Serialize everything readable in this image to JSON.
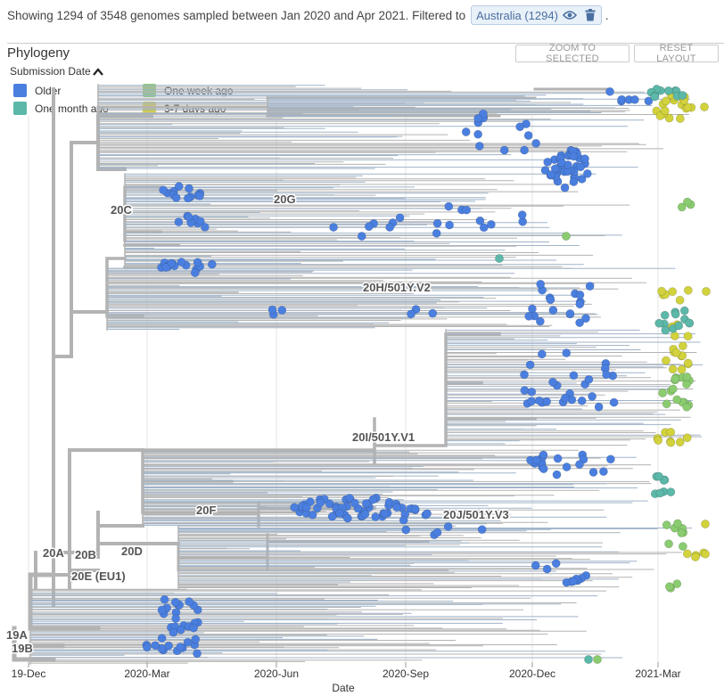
{
  "info": {
    "summary": "Showing 1294 of 3548 genomes sampled between Jan 2020 and Apr 2021. Filtered to",
    "filter_label": "Australia (1294)",
    "suffix": "."
  },
  "panel": {
    "title": "Phylogeny",
    "zoom_button": "ZOOM TO SELECTED",
    "reset_button": "RESET LAYOUT"
  },
  "legend": {
    "title": "Submission Date",
    "items": [
      {
        "label": "Older",
        "color": "#4A7FE0"
      },
      {
        "label": "One month ago",
        "color": "#5CB8A8"
      },
      {
        "label": "One week ago",
        "color": "#8ACC6F"
      },
      {
        "label": "3-7 days ago",
        "color": "#D2D23C"
      }
    ]
  },
  "axis": {
    "label": "Date",
    "ticks": [
      "19-Dec",
      "2020-Mar",
      "2020-Jun",
      "2020-Sep",
      "2020-Dec",
      "2021-Mar"
    ]
  },
  "clades": [
    "20C",
    "20G",
    "20H/501Y.V2",
    "20I/501Y.V1",
    "20F",
    "20J/501Y.V3",
    "20A",
    "20B",
    "20D",
    "20E (EU1)",
    "19A",
    "19B"
  ],
  "colors": {
    "branch": "#b3b3b3",
    "branch_light": "#9fb3c8",
    "older": "#4A7FE0",
    "month": "#5CB8A8",
    "week": "#8ACC6F",
    "recent": "#D2D23C"
  }
}
